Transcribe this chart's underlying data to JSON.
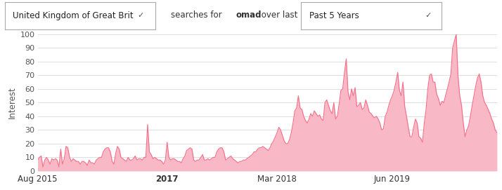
{
  "country_label": "United Kingdom of Great Brit",
  "period_label": "Past 5 Years",
  "ylabel": "Interest",
  "x_tick_labels": [
    "Aug 2015",
    "2017",
    "Mar 2018",
    "Jun 2019"
  ],
  "ylim": [
    0,
    100
  ],
  "yticks": [
    0,
    10,
    20,
    30,
    40,
    50,
    60,
    70,
    80,
    90,
    100
  ],
  "line_color": "#F4728B",
  "fill_color": "#F9B8C5",
  "background_color": "#ffffff",
  "grid_color": "#e0e0e0",
  "n_weeks": 261,
  "x_tick_week_positions": [
    0,
    73,
    135,
    200
  ],
  "values": [
    8,
    10,
    11,
    3,
    8,
    10,
    8,
    5,
    9,
    8,
    9,
    8,
    3,
    16,
    5,
    9,
    18,
    17,
    10,
    7,
    9,
    8,
    7,
    7,
    5,
    7,
    7,
    6,
    4,
    8,
    6,
    6,
    5,
    8,
    9,
    10,
    10,
    14,
    16,
    17,
    17,
    14,
    7,
    5,
    13,
    18,
    16,
    10,
    9,
    8,
    7,
    10,
    8,
    8,
    9,
    11,
    8,
    9,
    9,
    8,
    10,
    10,
    34,
    14,
    12,
    9,
    10,
    9,
    8,
    8,
    7,
    5,
    8,
    21,
    10,
    8,
    9,
    9,
    8,
    7,
    7,
    6,
    9,
    11,
    15,
    16,
    17,
    16,
    8,
    7,
    8,
    8,
    10,
    12,
    8,
    8,
    9,
    8,
    9,
    10,
    10,
    14,
    16,
    17,
    17,
    14,
    8,
    9,
    10,
    11,
    9,
    8,
    7,
    6,
    7,
    7,
    8,
    8,
    9,
    10,
    11,
    12,
    14,
    14,
    16,
    17,
    17,
    18,
    17,
    16,
    15,
    17,
    20,
    22,
    25,
    28,
    32,
    30,
    26,
    22,
    20,
    20,
    23,
    28,
    35,
    44,
    46,
    55,
    46,
    45,
    40,
    37,
    35,
    38,
    42,
    40,
    44,
    42,
    40,
    41,
    38,
    37,
    50,
    52,
    48,
    44,
    42,
    50,
    38,
    40,
    49,
    59,
    60,
    72,
    82,
    58,
    52,
    60,
    55,
    61,
    47,
    48,
    50,
    45,
    46,
    52,
    48,
    43,
    42,
    40,
    39,
    40,
    38,
    35,
    30,
    31,
    40,
    43,
    48,
    52,
    55,
    59,
    65,
    72,
    59,
    55,
    65,
    47,
    40,
    32,
    25,
    25,
    32,
    38,
    35,
    25,
    24,
    21,
    35,
    45,
    60,
    70,
    71,
    65,
    65,
    56,
    53,
    48,
    51,
    50,
    55,
    60,
    65,
    71,
    90,
    95,
    100,
    70,
    55,
    48,
    35,
    25,
    30,
    33,
    40,
    48,
    55,
    62,
    68,
    71,
    65,
    55,
    50,
    48,
    45,
    42,
    38,
    35,
    30,
    28
  ]
}
